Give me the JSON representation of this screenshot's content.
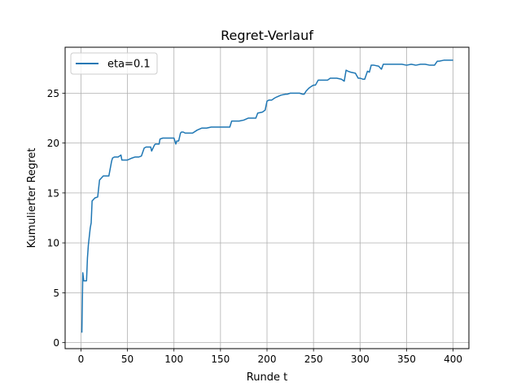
{
  "chart_data": {
    "type": "line",
    "title": "Regret-Verlauf",
    "xlabel": "Runde t",
    "ylabel": "Kumulierter Regret",
    "xlim": [
      -17,
      417
    ],
    "ylim": [
      -0.6,
      29.6
    ],
    "xticks": [
      0,
      50,
      100,
      150,
      200,
      250,
      300,
      350,
      400
    ],
    "yticks": [
      0,
      5,
      10,
      15,
      20,
      25
    ],
    "xtick_labels": [
      "0",
      "50",
      "100",
      "150",
      "200",
      "250",
      "300",
      "350",
      "400"
    ],
    "ytick_labels": [
      "0",
      "5",
      "10",
      "15",
      "20",
      "25"
    ],
    "grid": true,
    "legend_position": "top-left",
    "series": [
      {
        "name": "eta=0.1",
        "color": "#1f77b4",
        "x": [
          1,
          2,
          3,
          6,
          7,
          8,
          10,
          11,
          12,
          13,
          15,
          18,
          20,
          21,
          24,
          30,
          33,
          34,
          36,
          40,
          43,
          44,
          47,
          50,
          55,
          58,
          62,
          65,
          68,
          70,
          75,
          76,
          79,
          80,
          84,
          85,
          88,
          90,
          93,
          95,
          100,
          102,
          103,
          105,
          107,
          108,
          110,
          112,
          115,
          120,
          125,
          130,
          135,
          140,
          145,
          150,
          155,
          160,
          162,
          165,
          170,
          175,
          180,
          183,
          185,
          188,
          190,
          195,
          198,
          200,
          202,
          205,
          208,
          210,
          215,
          220,
          222,
          225,
          230,
          235,
          238,
          240,
          242,
          245,
          248,
          250,
          252,
          255,
          260,
          265,
          268,
          270,
          275,
          280,
          283,
          285,
          287,
          290,
          295,
          298,
          300,
          303,
          305,
          308,
          310,
          312,
          315,
          320,
          323,
          325,
          330,
          335,
          340,
          345,
          350,
          355,
          360,
          365,
          370,
          375,
          380,
          383,
          385,
          390,
          395,
          400
        ],
        "y": [
          1.0,
          7.0,
          6.2,
          6.2,
          8.5,
          9.8,
          11.5,
          12.0,
          14.2,
          14.3,
          14.5,
          14.6,
          16.3,
          16.4,
          16.7,
          16.7,
          18.2,
          18.5,
          18.6,
          18.6,
          18.8,
          18.3,
          18.3,
          18.3,
          18.5,
          18.6,
          18.6,
          18.7,
          19.5,
          19.6,
          19.6,
          19.2,
          19.8,
          19.9,
          19.9,
          20.4,
          20.5,
          20.5,
          20.5,
          20.5,
          20.5,
          19.9,
          20.2,
          20.2,
          21.0,
          21.1,
          21.1,
          21.0,
          21.0,
          21.0,
          21.3,
          21.5,
          21.5,
          21.6,
          21.6,
          21.6,
          21.6,
          21.6,
          22.2,
          22.2,
          22.2,
          22.3,
          22.5,
          22.5,
          22.5,
          22.5,
          23.0,
          23.1,
          23.3,
          24.2,
          24.3,
          24.3,
          24.5,
          24.6,
          24.8,
          24.9,
          24.9,
          25.0,
          25.0,
          25.0,
          24.9,
          24.9,
          25.2,
          25.5,
          25.7,
          25.8,
          25.8,
          26.3,
          26.3,
          26.3,
          26.5,
          26.5,
          26.5,
          26.4,
          26.2,
          27.3,
          27.2,
          27.1,
          27.0,
          26.5,
          26.5,
          26.4,
          26.4,
          27.2,
          27.1,
          27.8,
          27.8,
          27.7,
          27.4,
          27.9,
          27.9,
          27.9,
          27.9,
          27.9,
          27.8,
          27.9,
          27.8,
          27.9,
          27.9,
          27.8,
          27.8,
          28.2,
          28.2,
          28.3,
          28.3,
          28.3
        ]
      }
    ]
  }
}
